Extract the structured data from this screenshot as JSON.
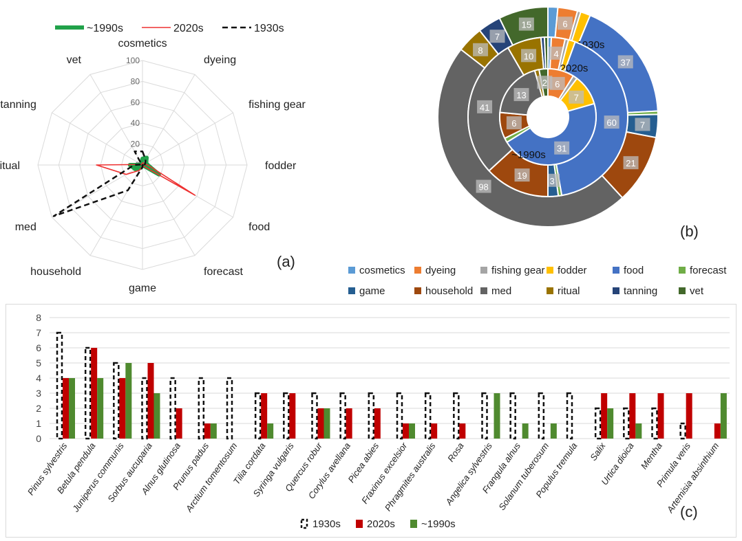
{
  "labels": {
    "a": "(a)",
    "b": "(b)",
    "c": "(c)"
  },
  "chart_data": [
    {
      "type": "radar",
      "categories": [
        "cosmetics",
        "dyeing",
        "fishing gear",
        "fodder",
        "food",
        "forecast",
        "game",
        "household",
        "med",
        "ritual",
        "tanning",
        "vet"
      ],
      "rlim": [
        0,
        100
      ],
      "ticks": [
        "0",
        "20",
        "40",
        "60",
        "80",
        "100"
      ],
      "legend_position": "top",
      "series": [
        {
          "name": "~1990s",
          "color": "#21a24a",
          "style": "thick",
          "values": [
            6,
            8,
            4,
            5,
            18,
            0,
            0,
            3,
            8,
            12,
            0,
            2
          ]
        },
        {
          "name": "2020s",
          "color": "#ee3030",
          "style": "solid",
          "values": [
            2,
            2,
            2,
            5,
            58,
            1,
            1,
            6,
            18,
            44,
            1,
            1
          ]
        },
        {
          "name": "1930s",
          "color": "#111111",
          "style": "dashed",
          "values": [
            13,
            6,
            3,
            2,
            3,
            0,
            2,
            28,
            98,
            8,
            1,
            15
          ]
        }
      ]
    },
    {
      "type": "pie",
      "subtype": "donut",
      "rings": [
        "1930s",
        "2020s",
        "~1990s"
      ],
      "categories": [
        "cosmetics",
        "dyeing",
        "fishing gear",
        "fodder",
        "food",
        "forecast",
        "game",
        "household",
        "med",
        "ritual",
        "tanning",
        "vet"
      ],
      "colors": [
        "#5b9bd5",
        "#ed7d31",
        "#a5a5a5",
        "#ffc000",
        "#4472c4",
        "#70ad47",
        "#255e91",
        "#9e480e",
        "#636363",
        "#997300",
        "#264478",
        "#43682b"
      ],
      "legend_position": "bottom",
      "series": [
        {
          "name": "1930s",
          "values": [
            3,
            6,
            1,
            3,
            37,
            1,
            7,
            21,
            98,
            8,
            7,
            15
          ]
        },
        {
          "name": "2020s",
          "values": [
            1,
            4,
            1,
            2,
            60,
            1,
            3,
            19,
            41,
            10,
            1,
            1
          ]
        },
        {
          "name": "~1990s",
          "values": [
            0,
            6,
            1,
            7,
            31,
            1,
            0,
            6,
            13,
            1,
            0,
            2
          ]
        }
      ]
    },
    {
      "type": "bar",
      "categories": [
        "Pinus sylvestris",
        "Betula pendula",
        "Juniperus communis",
        "Sorbus aucuparia",
        "Alnus glutinosa",
        "Prunus padus",
        "Arctium tomentosum",
        "Tilia cordata",
        "Syringa vulgaris",
        "Quercus robur",
        "Corylus avellana",
        "Picea abies",
        "Fraxinus excelsior",
        "Phragmites australis",
        "Rosa",
        "Angelica sylvestris",
        "Frangula alnus",
        "Solanum tuberosum",
        "Populus tremula",
        "Salix",
        "Urtica dioica",
        "Mentha",
        "Primula veris",
        "Artemisia absinthium"
      ],
      "ylim": [
        0,
        8
      ],
      "yticks": [
        "0",
        "1",
        "2",
        "3",
        "4",
        "5",
        "6",
        "7",
        "8"
      ],
      "grid": true,
      "legend_position": "bottom",
      "series": [
        {
          "name": "1930s",
          "color": "#111111",
          "style": "dashed-outline",
          "values": [
            7,
            6,
            5,
            4,
            4,
            4,
            4,
            3,
            3,
            3,
            3,
            3,
            3,
            3,
            3,
            3,
            3,
            3,
            3,
            2,
            2,
            2,
            1,
            0
          ]
        },
        {
          "name": "2020s",
          "color": "#c00000",
          "style": "solid",
          "values": [
            4,
            6,
            4,
            5,
            2,
            1,
            0,
            3,
            3,
            2,
            2,
            2,
            1,
            1,
            1,
            0,
            0,
            0,
            0,
            3,
            3,
            3,
            3,
            1
          ]
        },
        {
          "name": "~1990s",
          "color": "#4f8a2f",
          "style": "solid",
          "values": [
            4,
            4,
            5,
            3,
            0,
            1,
            0,
            1,
            0,
            2,
            0,
            0,
            1,
            0,
            0,
            3,
            1,
            1,
            0,
            2,
            1,
            0,
            0,
            3
          ]
        }
      ]
    }
  ]
}
